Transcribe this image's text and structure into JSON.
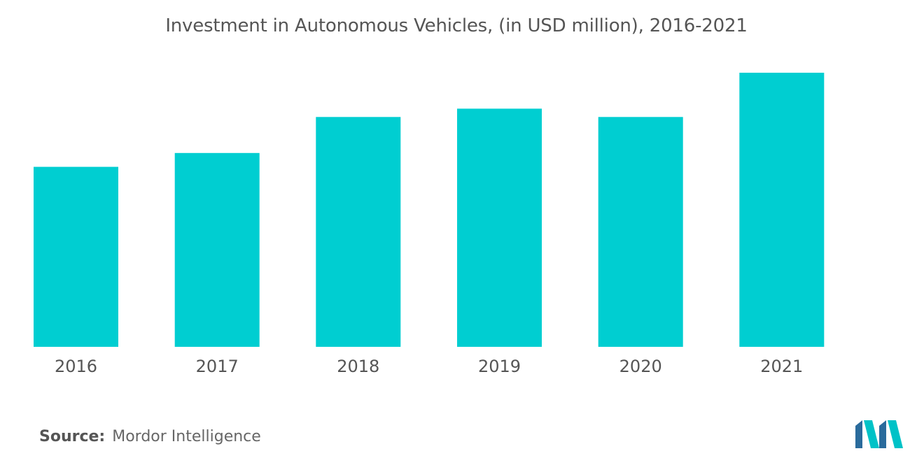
{
  "chart_data": {
    "type": "bar",
    "title": "Investment in Autonomous Vehicles, (in USD million), 2016-2021",
    "xlabel": "",
    "ylabel": "",
    "categories": [
      "2016",
      "2017",
      "2018",
      "2019",
      "2020",
      "2021"
    ],
    "values": [
      65,
      70,
      83,
      86,
      83,
      99
    ],
    "ylim": [
      0,
      100
    ],
    "grid": false,
    "legend": "none",
    "bar_color": "#00CED1"
  },
  "source": {
    "label": "Source:",
    "text": "Mordor Intelligence"
  },
  "logo": {
    "icon": "mordor-intelligence-logo-icon",
    "colors": [
      "#2A6B9C",
      "#00C2C7"
    ]
  }
}
